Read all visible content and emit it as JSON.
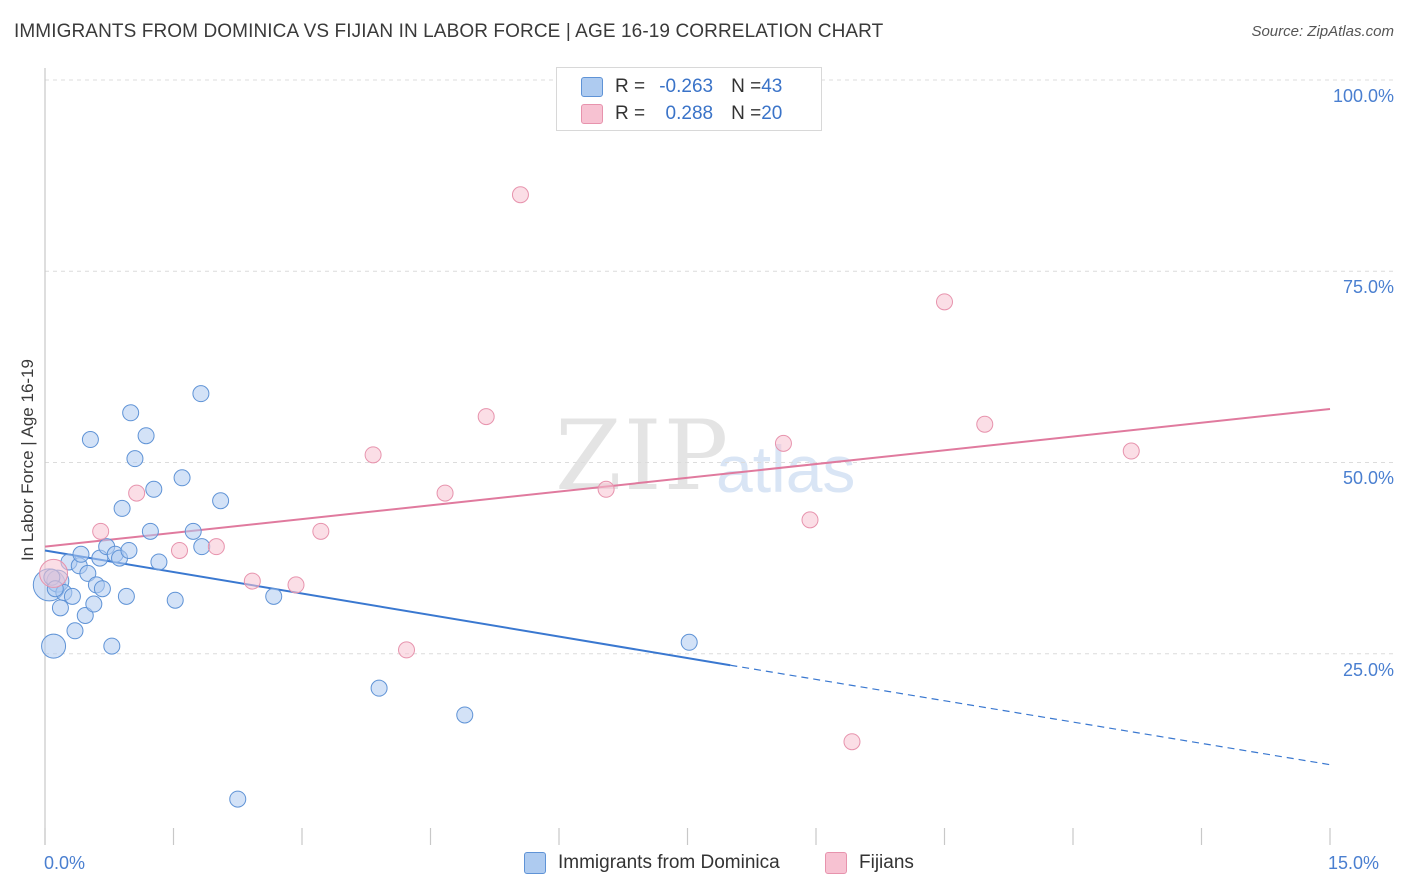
{
  "header": {
    "title": "IMMIGRANTS FROM DOMINICA VS FIJIAN IN LABOR FORCE | AGE 16-19 CORRELATION CHART",
    "source": "Source: ZipAtlas.com"
  },
  "watermark": {
    "zip": "ZIP",
    "atlas": "atlas"
  },
  "legend": {
    "series1": {
      "r_label": "R = ",
      "r_value": "-0.263",
      "n_label": "N = ",
      "n_value": "43"
    },
    "series2": {
      "r_label": "R = ",
      "r_value": " 0.288",
      "n_label": "N = ",
      "n_value": "20"
    }
  },
  "colors": {
    "blue_fill": "#aecbf0",
    "blue_stroke": "#5f93d6",
    "blue_line": "#3a78d0",
    "pink_fill": "#f7c2d2",
    "pink_stroke": "#e793ad",
    "pink_line": "#e07a9e",
    "grid": "#dcdcdc",
    "axis": "#c8c8c8"
  },
  "chart_data": {
    "type": "scatter",
    "title": "IMMIGRANTS FROM DOMINICA VS FIJIAN IN LABOR FORCE | AGE 16-19 CORRELATION CHART",
    "xlabel": "",
    "ylabel": "In Labor Force | Age 16-19",
    "xlim": [
      0,
      15
    ],
    "ylim": [
      0,
      100
    ],
    "x_tick_labels": [
      "0.0%",
      "15.0%"
    ],
    "y_ticks": [
      25,
      50,
      75,
      100
    ],
    "y_tick_labels": [
      "25.0%",
      "50.0%",
      "75.0%",
      "100.0%"
    ],
    "series": [
      {
        "name": "Immigrants from Dominica",
        "color": "blue",
        "r": -0.263,
        "n": 43,
        "trend": {
          "x0": 0.0,
          "y0": 38.5,
          "x1": 8.0,
          "y1": 23.5,
          "dash_to_x": 15.0,
          "dash_to_y": 10.5
        },
        "points": [
          {
            "x": 0.05,
            "y": 34.0,
            "s": 16
          },
          {
            "x": 0.1,
            "y": 26.0,
            "s": 12
          },
          {
            "x": 0.15,
            "y": 34.5,
            "s": 11
          },
          {
            "x": 0.18,
            "y": 31.0,
            "s": 8
          },
          {
            "x": 0.22,
            "y": 33.0,
            "s": 8
          },
          {
            "x": 0.28,
            "y": 37.0,
            "s": 8
          },
          {
            "x": 0.32,
            "y": 32.5,
            "s": 8
          },
          {
            "x": 0.35,
            "y": 28.0,
            "s": 8
          },
          {
            "x": 0.4,
            "y": 36.5,
            "s": 8
          },
          {
            "x": 0.42,
            "y": 38.0,
            "s": 8
          },
          {
            "x": 0.47,
            "y": 30.0,
            "s": 8
          },
          {
            "x": 0.5,
            "y": 35.5,
            "s": 8
          },
          {
            "x": 0.53,
            "y": 53.0,
            "s": 8
          },
          {
            "x": 0.57,
            "y": 31.5,
            "s": 8
          },
          {
            "x": 0.6,
            "y": 34.0,
            "s": 8
          },
          {
            "x": 0.64,
            "y": 37.5,
            "s": 8
          },
          {
            "x": 0.67,
            "y": 33.5,
            "s": 8
          },
          {
            "x": 0.72,
            "y": 39.0,
            "s": 8
          },
          {
            "x": 0.78,
            "y": 26.0,
            "s": 8
          },
          {
            "x": 0.82,
            "y": 38.0,
            "s": 8
          },
          {
            "x": 0.87,
            "y": 37.5,
            "s": 8
          },
          {
            "x": 0.9,
            "y": 44.0,
            "s": 8
          },
          {
            "x": 0.95,
            "y": 32.5,
            "s": 8
          },
          {
            "x": 0.98,
            "y": 38.5,
            "s": 8
          },
          {
            "x": 1.0,
            "y": 56.5,
            "s": 8
          },
          {
            "x": 1.05,
            "y": 50.5,
            "s": 8
          },
          {
            "x": 1.18,
            "y": 53.5,
            "s": 8
          },
          {
            "x": 1.23,
            "y": 41.0,
            "s": 8
          },
          {
            "x": 1.27,
            "y": 46.5,
            "s": 8
          },
          {
            "x": 1.33,
            "y": 37.0,
            "s": 8
          },
          {
            "x": 1.52,
            "y": 32.0,
            "s": 8
          },
          {
            "x": 1.6,
            "y": 48.0,
            "s": 8
          },
          {
            "x": 1.73,
            "y": 41.0,
            "s": 8
          },
          {
            "x": 1.82,
            "y": 59.0,
            "s": 8
          },
          {
            "x": 1.83,
            "y": 39.0,
            "s": 8
          },
          {
            "x": 2.05,
            "y": 45.0,
            "s": 8
          },
          {
            "x": 2.25,
            "y": 6.0,
            "s": 8
          },
          {
            "x": 2.67,
            "y": 32.5,
            "s": 8
          },
          {
            "x": 3.9,
            "y": 20.5,
            "s": 8
          },
          {
            "x": 4.9,
            "y": 17.0,
            "s": 8
          },
          {
            "x": 7.52,
            "y": 26.5,
            "s": 8
          },
          {
            "x": 0.08,
            "y": 35.0,
            "s": 8
          },
          {
            "x": 0.12,
            "y": 33.5,
            "s": 8
          }
        ]
      },
      {
        "name": "Fijians",
        "color": "pink",
        "r": 0.288,
        "n": 20,
        "trend": {
          "x0": 0.0,
          "y0": 39.0,
          "x1": 15.0,
          "y1": 57.0
        },
        "points": [
          {
            "x": 0.1,
            "y": 35.5,
            "s": 14
          },
          {
            "x": 0.65,
            "y": 41.0,
            "s": 8
          },
          {
            "x": 1.07,
            "y": 46.0,
            "s": 8
          },
          {
            "x": 1.57,
            "y": 38.5,
            "s": 8
          },
          {
            "x": 2.0,
            "y": 39.0,
            "s": 8
          },
          {
            "x": 2.42,
            "y": 34.5,
            "s": 8
          },
          {
            "x": 2.93,
            "y": 34.0,
            "s": 8
          },
          {
            "x": 3.22,
            "y": 41.0,
            "s": 8
          },
          {
            "x": 3.83,
            "y": 51.0,
            "s": 8
          },
          {
            "x": 4.22,
            "y": 25.5,
            "s": 8
          },
          {
            "x": 4.67,
            "y": 46.0,
            "s": 8
          },
          {
            "x": 5.15,
            "y": 56.0,
            "s": 8
          },
          {
            "x": 5.55,
            "y": 85.0,
            "s": 8
          },
          {
            "x": 6.55,
            "y": 46.5,
            "s": 8
          },
          {
            "x": 8.62,
            "y": 52.5,
            "s": 8
          },
          {
            "x": 8.93,
            "y": 42.5,
            "s": 8
          },
          {
            "x": 9.42,
            "y": 13.5,
            "s": 8
          },
          {
            "x": 10.5,
            "y": 71.0,
            "s": 8
          },
          {
            "x": 10.97,
            "y": 55.0,
            "s": 8
          },
          {
            "x": 12.68,
            "y": 51.5,
            "s": 8
          }
        ]
      }
    ]
  }
}
